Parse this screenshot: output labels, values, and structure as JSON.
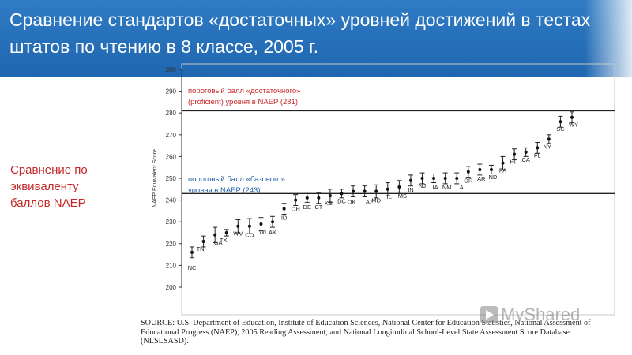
{
  "header": {
    "title": "Сравнение стандартов «достаточных» уровней достижений в тестах штатов по чтению в 8 классе, 2005 г."
  },
  "side_label": "Сравнение по эквиваленту баллов NAEP",
  "source_note": "SOURCE: U.S. Department of Education, Institute of Education Sciences, National Center for Education Statistics, National Assessment of Educational Progress (NAEP), 2005 Reading Assessment, and National Longitudinal School-Level State Assessment Score Database (NLSLSASD).",
  "watermark": "MyShared",
  "colors": {
    "header_bg": "#1f66b0",
    "side_label": "#c62828",
    "proficient_label": "#c62828",
    "basic_label": "#1f5fa8"
  },
  "chart_data": {
    "type": "scatter",
    "title": "",
    "xlabel": "",
    "ylabel": "NAEP Equivalent Score",
    "ylim": [
      200,
      300
    ],
    "yticks": [
      200,
      210,
      220,
      230,
      240,
      250,
      260,
      270,
      280,
      290,
      300
    ],
    "grid": false,
    "error_bars": true,
    "reference_lines": [
      {
        "value": 281,
        "label": "пороговый балл «достаточного» (proficient) уровня в NAEP (281)"
      },
      {
        "value": 243,
        "label": "пороговый балл «базового» уровня в NAEP (243)"
      }
    ],
    "states": [
      "NC",
      "TN",
      "GA",
      "TX",
      "WV",
      "CO",
      "WI",
      "AK",
      "ID",
      "OH",
      "DE",
      "CT",
      "KS",
      "DC",
      "OK",
      "AZ",
      "MD",
      "IL",
      "MS",
      "IN",
      "NJ",
      "IA",
      "NM",
      "LA",
      "OR",
      "AR",
      "ND",
      "PA",
      "HI",
      "CA",
      "FL",
      "NY",
      "SC",
      "WY"
    ],
    "values": [
      216,
      221,
      224,
      225,
      228,
      228,
      229,
      230,
      236,
      240,
      241,
      241,
      242,
      243,
      244,
      244,
      244,
      245,
      246,
      249,
      250,
      250,
      250,
      250,
      253,
      254,
      254,
      257,
      261,
      262,
      264,
      268,
      276,
      278
    ],
    "errors": [
      2.5,
      2.5,
      3.5,
      1.5,
      3,
      3.5,
      3,
      2.5,
      2.5,
      2.5,
      2,
      2.5,
      3,
      2,
      2.5,
      2.5,
      3,
      3,
      3,
      2.5,
      2.5,
      2,
      2.5,
      2.5,
      2.5,
      2.5,
      2,
      3,
      2.5,
      2,
      2.5,
      2,
      2.5,
      2.5
    ]
  }
}
